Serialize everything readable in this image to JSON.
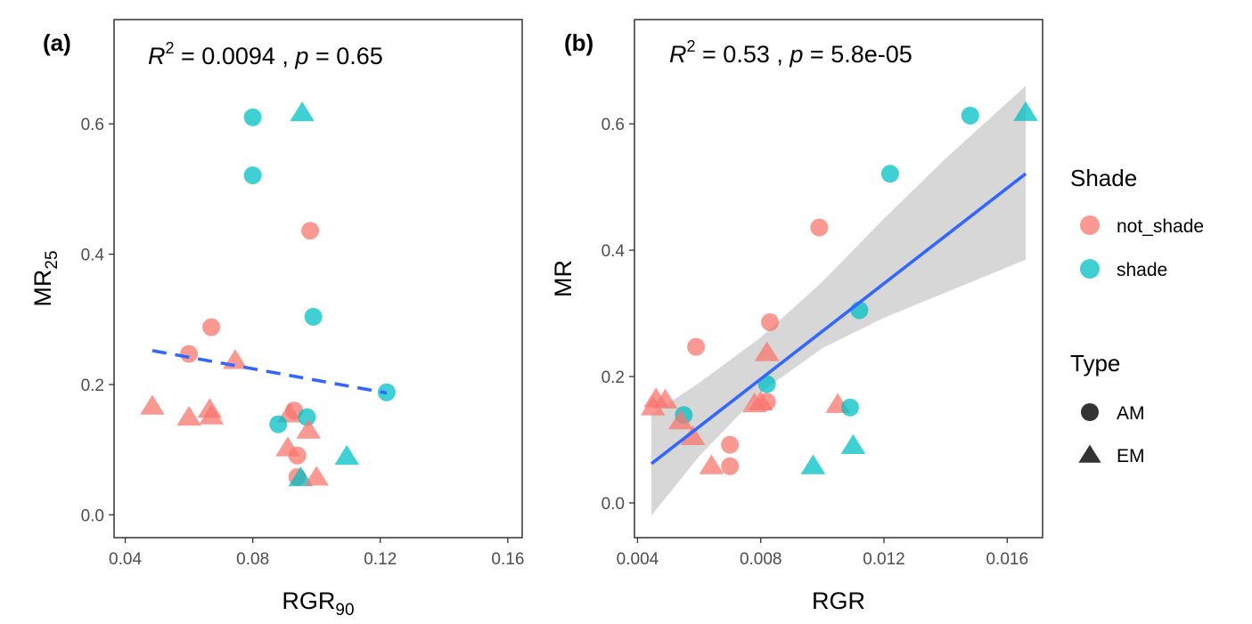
{
  "chart_data": [
    {
      "type": "scatter",
      "panel_label": "(a)",
      "stat": {
        "r2_value": "0.0094",
        "p_value": "0.65"
      },
      "xlabel": "RGR",
      "xlabel_sub": "90",
      "ylabel": "MR",
      "ylabel_sub": "25",
      "xlim": [
        0.0365,
        0.1645
      ],
      "ylim": [
        -0.035,
        0.76
      ],
      "xticks": [
        0.04,
        0.08,
        0.12,
        0.16
      ],
      "xtick_labels": [
        "0.04",
        "0.08",
        "0.12",
        "0.16"
      ],
      "yticks": [
        0.0,
        0.2,
        0.4,
        0.6
      ],
      "ytick_labels": [
        "0.0",
        "0.2",
        "0.4",
        "0.6"
      ],
      "regression": {
        "style": "dashed",
        "x": [
          0.0485,
          0.122
        ],
        "y": [
          0.252,
          0.187
        ]
      },
      "points": [
        {
          "x": 0.08,
          "y": 0.61,
          "shade": "shade",
          "type": "AM"
        },
        {
          "x": 0.0955,
          "y": 0.617,
          "shade": "shade",
          "type": "EM"
        },
        {
          "x": 0.08,
          "y": 0.521,
          "shade": "shade",
          "type": "AM"
        },
        {
          "x": 0.098,
          "y": 0.436,
          "shade": "not_shade",
          "type": "AM"
        },
        {
          "x": 0.099,
          "y": 0.304,
          "shade": "shade",
          "type": "AM"
        },
        {
          "x": 0.067,
          "y": 0.288,
          "shade": "not_shade",
          "type": "AM"
        },
        {
          "x": 0.06,
          "y": 0.247,
          "shade": "not_shade",
          "type": "AM"
        },
        {
          "x": 0.0745,
          "y": 0.237,
          "shade": "not_shade",
          "type": "EM"
        },
        {
          "x": 0.122,
          "y": 0.188,
          "shade": "shade",
          "type": "AM"
        },
        {
          "x": 0.0485,
          "y": 0.167,
          "shade": "not_shade",
          "type": "EM"
        },
        {
          "x": 0.0665,
          "y": 0.162,
          "shade": "not_shade",
          "type": "EM"
        },
        {
          "x": 0.06,
          "y": 0.15,
          "shade": "not_shade",
          "type": "EM"
        },
        {
          "x": 0.067,
          "y": 0.152,
          "shade": "not_shade",
          "type": "EM"
        },
        {
          "x": 0.093,
          "y": 0.16,
          "shade": "not_shade",
          "type": "AM"
        },
        {
          "x": 0.0915,
          "y": 0.155,
          "shade": "not_shade",
          "type": "EM"
        },
        {
          "x": 0.097,
          "y": 0.15,
          "shade": "shade",
          "type": "AM"
        },
        {
          "x": 0.088,
          "y": 0.139,
          "shade": "shade",
          "type": "AM"
        },
        {
          "x": 0.0975,
          "y": 0.13,
          "shade": "not_shade",
          "type": "EM"
        },
        {
          "x": 0.091,
          "y": 0.103,
          "shade": "not_shade",
          "type": "EM"
        },
        {
          "x": 0.094,
          "y": 0.091,
          "shade": "not_shade",
          "type": "AM"
        },
        {
          "x": 0.1095,
          "y": 0.09,
          "shade": "shade",
          "type": "EM"
        },
        {
          "x": 0.094,
          "y": 0.058,
          "shade": "not_shade",
          "type": "AM"
        },
        {
          "x": 0.095,
          "y": 0.057,
          "shade": "shade",
          "type": "EM"
        },
        {
          "x": 0.1,
          "y": 0.058,
          "shade": "not_shade",
          "type": "EM"
        }
      ]
    },
    {
      "type": "scatter",
      "panel_label": "(b)",
      "stat": {
        "r2_value": "0.53",
        "p_value": "5.8e-05"
      },
      "xlabel": "RGR",
      "xlabel_sub": "",
      "ylabel": "MR",
      "ylabel_sub": "",
      "xlim": [
        0.0039,
        0.01715
      ],
      "ylim": [
        -0.055,
        0.765
      ],
      "xticks": [
        0.004,
        0.008,
        0.012,
        0.016
      ],
      "xtick_labels": [
        "0.004",
        "0.008",
        "0.012",
        "0.016"
      ],
      "yticks": [
        0.0,
        0.2,
        0.4,
        0.6
      ],
      "ytick_labels": [
        "0.0",
        "0.2",
        "0.4",
        "0.6"
      ],
      "regression": {
        "style": "solid",
        "x": [
          0.00445,
          0.0166
        ],
        "y": [
          0.062,
          0.521
        ]
      },
      "confidence_band": {
        "x": [
          0.00445,
          0.006,
          0.008,
          0.01,
          0.012,
          0.014,
          0.0166
        ],
        "lower": [
          -0.02,
          0.074,
          0.175,
          0.245,
          0.293,
          0.333,
          0.385
        ],
        "upper": [
          0.14,
          0.19,
          0.262,
          0.35,
          0.45,
          0.545,
          0.66
        ]
      },
      "points": [
        {
          "x": 0.0148,
          "y": 0.613,
          "shade": "shade",
          "type": "AM"
        },
        {
          "x": 0.0166,
          "y": 0.618,
          "shade": "shade",
          "type": "EM"
        },
        {
          "x": 0.0122,
          "y": 0.521,
          "shade": "shade",
          "type": "AM"
        },
        {
          "x": 0.0099,
          "y": 0.436,
          "shade": "not_shade",
          "type": "AM"
        },
        {
          "x": 0.0112,
          "y": 0.305,
          "shade": "shade",
          "type": "AM"
        },
        {
          "x": 0.0083,
          "y": 0.286,
          "shade": "not_shade",
          "type": "AM"
        },
        {
          "x": 0.0059,
          "y": 0.247,
          "shade": "not_shade",
          "type": "AM"
        },
        {
          "x": 0.0082,
          "y": 0.238,
          "shade": "not_shade",
          "type": "EM"
        },
        {
          "x": 0.0082,
          "y": 0.188,
          "shade": "shade",
          "type": "AM"
        },
        {
          "x": 0.0046,
          "y": 0.165,
          "shade": "not_shade",
          "type": "EM"
        },
        {
          "x": 0.0049,
          "y": 0.163,
          "shade": "not_shade",
          "type": "EM"
        },
        {
          "x": 0.0082,
          "y": 0.16,
          "shade": "not_shade",
          "type": "AM"
        },
        {
          "x": 0.008,
          "y": 0.16,
          "shade": "not_shade",
          "type": "EM"
        },
        {
          "x": 0.0078,
          "y": 0.157,
          "shade": "not_shade",
          "type": "EM"
        },
        {
          "x": 0.0105,
          "y": 0.156,
          "shade": "not_shade",
          "type": "EM"
        },
        {
          "x": 0.0109,
          "y": 0.151,
          "shade": "shade",
          "type": "AM"
        },
        {
          "x": 0.0045,
          "y": 0.152,
          "shade": "not_shade",
          "type": "EM"
        },
        {
          "x": 0.0055,
          "y": 0.139,
          "shade": "shade",
          "type": "AM"
        },
        {
          "x": 0.0054,
          "y": 0.13,
          "shade": "not_shade",
          "type": "EM"
        },
        {
          "x": 0.0058,
          "y": 0.105,
          "shade": "not_shade",
          "type": "EM"
        },
        {
          "x": 0.007,
          "y": 0.092,
          "shade": "not_shade",
          "type": "AM"
        },
        {
          "x": 0.011,
          "y": 0.091,
          "shade": "shade",
          "type": "EM"
        },
        {
          "x": 0.007,
          "y": 0.058,
          "shade": "not_shade",
          "type": "AM"
        },
        {
          "x": 0.0064,
          "y": 0.059,
          "shade": "not_shade",
          "type": "EM"
        },
        {
          "x": 0.0097,
          "y": 0.059,
          "shade": "shade",
          "type": "EM"
        }
      ]
    }
  ],
  "legend": {
    "shade_title": "Shade",
    "shade_items": [
      {
        "key": "not_shade",
        "label": "not_shade",
        "color": "#F8766D"
      },
      {
        "key": "shade",
        "label": "shade",
        "color": "#00BFC4"
      }
    ],
    "type_title": "Type",
    "type_items": [
      {
        "key": "AM",
        "label": "AM",
        "shape": "circle"
      },
      {
        "key": "EM",
        "label": "EM",
        "shape": "triangle"
      }
    ]
  },
  "stat_format": {
    "r_letter": "R",
    "r_exponent": "2",
    "equals": " = ",
    "separator": " , ",
    "p_letter": "p"
  },
  "colors": {
    "not_shade": "#F8766D",
    "shade": "#00BFC4",
    "regression_line": "#3366FF",
    "band": "#bdbdbd",
    "tick": "#4d4d4d",
    "panel_border": "#333333"
  }
}
